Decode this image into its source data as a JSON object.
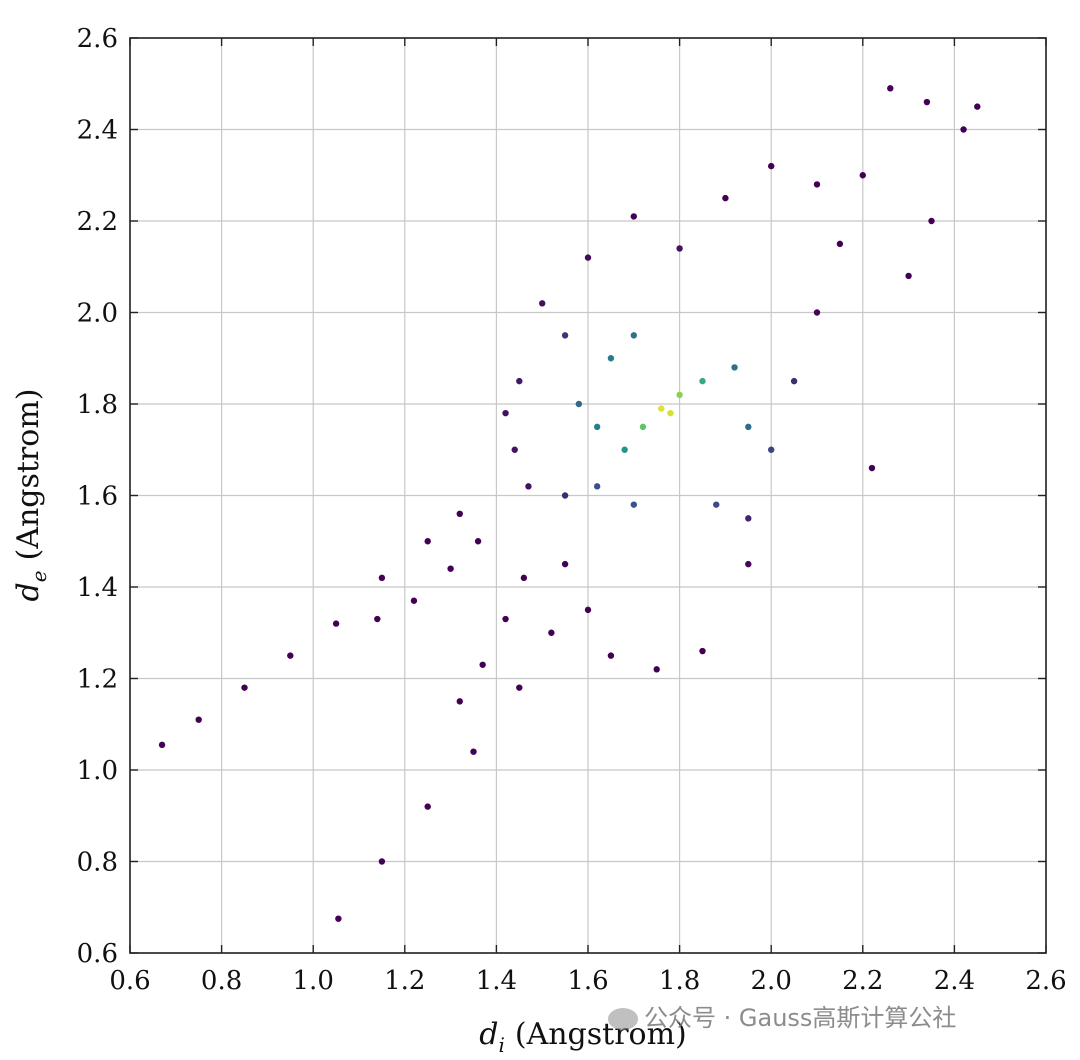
{
  "chart_data": {
    "type": "scatter",
    "title": "",
    "xlabel": "(Angstrom)",
    "xlabel_symbol": "d",
    "xlabel_subscript": "i",
    "ylabel": "(Angstrom)",
    "ylabel_symbol": "d",
    "ylabel_subscript": "e",
    "xlim": [
      0.6,
      2.6
    ],
    "ylim": [
      0.6,
      2.6
    ],
    "xticks": [
      "0.6",
      "0.8",
      "1.0",
      "1.2",
      "1.4",
      "1.6",
      "1.8",
      "2.0",
      "2.2",
      "2.4",
      "2.6"
    ],
    "yticks": [
      "0.6",
      "0.8",
      "1.0",
      "1.2",
      "1.4",
      "1.6",
      "1.8",
      "2.0",
      "2.2",
      "2.4",
      "2.6"
    ],
    "grid": true,
    "colormap": "viridis",
    "point_color_low": "#440154",
    "point_color_high": "#fde725",
    "series": [
      {
        "points": [
          [
            0.67,
            1.055
          ],
          [
            0.75,
            1.11
          ],
          [
            0.85,
            1.18
          ],
          [
            0.95,
            1.25
          ],
          [
            1.05,
            1.32
          ],
          [
            1.15,
            1.42
          ],
          [
            1.25,
            1.5
          ],
          [
            1.32,
            1.56
          ],
          [
            1.14,
            1.33
          ],
          [
            1.22,
            1.37
          ],
          [
            1.3,
            1.44
          ],
          [
            1.36,
            1.5
          ],
          [
            1.32,
            1.15
          ],
          [
            1.37,
            1.23
          ],
          [
            1.42,
            1.33
          ],
          [
            1.46,
            1.42
          ],
          [
            1.055,
            0.675
          ],
          [
            1.15,
            0.8
          ],
          [
            1.25,
            0.92
          ],
          [
            1.35,
            1.04
          ],
          [
            1.45,
            1.18
          ],
          [
            1.52,
            1.3
          ],
          [
            1.45,
            1.85
          ],
          [
            1.42,
            1.78
          ],
          [
            1.44,
            1.7
          ],
          [
            1.47,
            1.62
          ],
          [
            1.55,
            1.45
          ],
          [
            1.6,
            1.35
          ],
          [
            1.65,
            1.25
          ],
          [
            1.75,
            1.22
          ],
          [
            1.85,
            1.26
          ],
          [
            1.95,
            1.45
          ],
          [
            2.0,
            1.7
          ],
          [
            2.05,
            1.85
          ],
          [
            2.1,
            2.0
          ],
          [
            2.15,
            2.15
          ],
          [
            2.2,
            2.3
          ],
          [
            2.26,
            2.49
          ],
          [
            2.34,
            2.46
          ],
          [
            2.45,
            2.45
          ],
          [
            2.22,
            1.66
          ],
          [
            2.3,
            2.08
          ],
          [
            2.35,
            2.2
          ],
          [
            2.42,
            2.4
          ],
          [
            1.6,
            2.12
          ],
          [
            1.7,
            2.21
          ],
          [
            1.8,
            2.14
          ],
          [
            1.9,
            2.25
          ],
          [
            2.0,
            2.32
          ],
          [
            2.1,
            2.28
          ],
          [
            1.5,
            2.02
          ],
          [
            1.55,
            1.95
          ],
          [
            1.58,
            1.8
          ],
          [
            1.62,
            1.75
          ],
          [
            1.68,
            1.7
          ],
          [
            1.72,
            1.75
          ],
          [
            1.76,
            1.79
          ],
          [
            1.78,
            1.78
          ],
          [
            1.8,
            1.82
          ],
          [
            1.65,
            1.9
          ],
          [
            1.7,
            1.95
          ],
          [
            1.85,
            1.85
          ],
          [
            1.92,
            1.88
          ],
          [
            1.95,
            1.75
          ],
          [
            1.55,
            1.6
          ],
          [
            1.62,
            1.62
          ],
          [
            1.7,
            1.58
          ],
          [
            1.88,
            1.58
          ],
          [
            1.95,
            1.55
          ]
        ]
      }
    ]
  },
  "watermark": {
    "text": "公众号 · Gauss高斯计算公社"
  }
}
